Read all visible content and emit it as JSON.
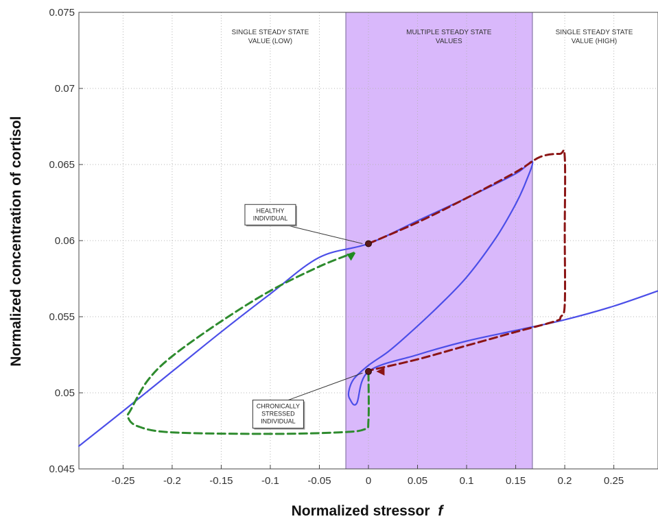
{
  "chart_data": {
    "type": "line",
    "xlabel_main": "Normalized stressor",
    "xlabel_var": "f",
    "ylabel": "Normalized concentration of cortisol",
    "xlim": [
      -0.295,
      0.295
    ],
    "ylim": [
      0.045,
      0.075
    ],
    "xticks": [
      -0.25,
      -0.2,
      -0.15,
      -0.1,
      -0.05,
      0,
      0.05,
      0.1,
      0.15,
      0.2,
      0.25
    ],
    "xtick_labels": [
      "-0.25",
      "-0.2",
      "-0.15",
      "-0.1",
      "-0.05",
      "0",
      "0.05",
      "0.1",
      "0.15",
      "0.2",
      "0.25"
    ],
    "yticks": [
      0.045,
      0.05,
      0.055,
      0.06,
      0.065,
      0.07,
      0.075
    ],
    "ytick_labels": [
      "0.045",
      "0.05",
      "0.055",
      "0.06",
      "0.065",
      "0.07",
      "0.075"
    ],
    "grid": true,
    "shaded_region": {
      "x": [
        -0.023,
        0.167
      ],
      "color": "#d9b8fb"
    },
    "region_labels": [
      {
        "lines": [
          "SINGLE STEADY STATE",
          "VALUE (LOW)"
        ],
        "x": -0.1
      },
      {
        "lines": [
          "MULTIPLE STEADY STATE",
          "VALUES"
        ],
        "x": 0.082
      },
      {
        "lines": [
          "SINGLE STEADY STATE",
          "VALUE (HIGH)"
        ],
        "x": 0.23
      }
    ],
    "series": [
      {
        "style": "solid",
        "color": "#4b4ee8",
        "x": [
          -0.295,
          -0.25,
          -0.2,
          -0.15,
          -0.1,
          -0.05,
          0,
          0.05,
          0.1,
          0.15,
          0.167,
          0.16,
          0.15,
          0.13,
          0.1,
          0.07,
          0.04,
          0.02,
          0.0,
          -0.015,
          -0.02,
          -0.019,
          -0.012,
          0,
          0.05,
          0.1,
          0.15,
          0.2,
          0.25,
          0.295
        ],
        "y": [
          0.0465,
          0.0488,
          0.0514,
          0.054,
          0.0565,
          0.0589,
          0.0598,
          0.0613,
          0.0628,
          0.0644,
          0.0652,
          0.0638,
          0.0624,
          0.0602,
          0.0576,
          0.0556,
          0.0538,
          0.0527,
          0.0518,
          0.0509,
          0.0501,
          0.0496,
          0.0493,
          0.0514,
          0.0525,
          0.0534,
          0.0541,
          0.0548,
          0.0557,
          0.0567
        ]
      },
      {
        "style": "dashed",
        "color": "#8b1515",
        "x": [
          0,
          0.05,
          0.1,
          0.15,
          0.175,
          0.195,
          0.2,
          0.2,
          0.2,
          0.196,
          0.19,
          0.15,
          0.1,
          0.05,
          0.003
        ],
        "y": [
          0.0598,
          0.0612,
          0.0628,
          0.0645,
          0.0655,
          0.0657,
          0.0655,
          0.0605,
          0.0558,
          0.055,
          0.0547,
          0.054,
          0.0531,
          0.0522,
          0.0515
        ]
      },
      {
        "style": "dashed",
        "color": "#2e8b2e",
        "x": [
          0,
          0.0,
          -0.004,
          -0.03,
          -0.1,
          -0.2,
          -0.235,
          -0.245,
          -0.242,
          -0.225,
          -0.2,
          -0.15,
          -0.1,
          -0.05,
          -0.015
        ],
        "y": [
          0.0513,
          0.0482,
          0.0476,
          0.0474,
          0.0473,
          0.0474,
          0.0478,
          0.0484,
          0.0489,
          0.0508,
          0.0524,
          0.0547,
          0.0567,
          0.0583,
          0.0592
        ]
      }
    ],
    "markers": [
      {
        "name": "healthy",
        "x": 0,
        "y": 0.0598,
        "color": "#5a1a1a"
      },
      {
        "name": "stressed",
        "x": 0,
        "y": 0.0514,
        "color": "#5a1a1a"
      }
    ],
    "arrowheads": [
      {
        "x": -0.013,
        "y": 0.0592,
        "angle_deg": -33,
        "color": "#1f8a1f"
      },
      {
        "x": 0.008,
        "y": 0.0514,
        "angle_deg": 180,
        "color": "#8b1515"
      }
    ],
    "annotations": [
      {
        "lines": [
          "HEALTHY",
          "INDIVIDUAL"
        ],
        "box_x": -0.1,
        "box_y": 0.0617,
        "target_x": -0.006,
        "target_y": 0.0598
      },
      {
        "lines": [
          "CHRONICALLY",
          "STRESSED",
          "INDIVIDUAL"
        ],
        "box_x": -0.092,
        "box_y": 0.0486,
        "target_x": -0.006,
        "target_y": 0.0513
      }
    ]
  }
}
